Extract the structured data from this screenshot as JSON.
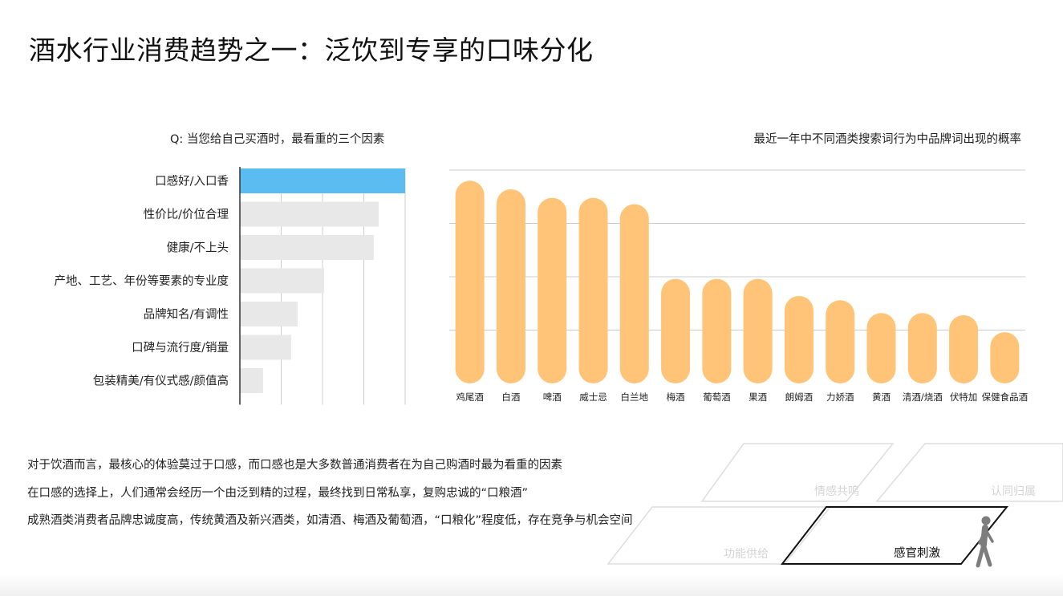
{
  "title": "酒水行业消费趋势之一：泛饮到专享的口味分化",
  "notes": [
    "对于饮酒而言，最核心的体验莫过于口感，而口感也是大多数普通消费者在为自己购酒时最为看重的因素",
    "在口感的选择上，人们通常会经历一个由泛到精的过程，最终找到日常私享，复购忠诚的“口粮酒”",
    "成熟酒类消费者品牌忠诚度高，传统黄酒及新兴酒类，如清酒、梅酒及葡萄酒，“口粮化”程度低，存在竞争与机会空间"
  ],
  "pyramid": {
    "levels": [
      "情感共鸣",
      "认同归属",
      "功能供给",
      "感官刺激"
    ],
    "highlight": "感官刺激",
    "figure_icon": "walking-person-icon"
  },
  "colors": {
    "highlight_bar": "#5bbcf2",
    "muted_bar": "#e8e8e8",
    "column": "#ffc477",
    "grid": "#cccccc"
  },
  "chart_data": [
    {
      "type": "bar",
      "orientation": "horizontal",
      "title": "Q: 当您给自己买酒时，最看重的三个因素",
      "categories": [
        "口感好/入口香",
        "性价比/价位合理",
        "健康/不上头",
        "产地、工艺、年份等要素的专业度",
        "品牌知名/有调性",
        "口碑与流行度/销量",
        "包装精美/有仪式感/颜值高"
      ],
      "values": [
        100,
        84,
        81,
        51,
        35,
        31,
        14
      ],
      "highlight_index": 0,
      "xlim": [
        0,
        100
      ],
      "grid": true
    },
    {
      "type": "bar",
      "orientation": "vertical",
      "title": "最近一年中不同酒类搜索词行为中品牌词出现的概率",
      "categories": [
        "鸡尾酒",
        "白酒",
        "啤酒",
        "威士忌",
        "白兰地",
        "梅酒",
        "葡萄酒",
        "果酒",
        "朗姆酒",
        "力娇酒",
        "黄酒",
        "清酒/烧酒",
        "伏特加",
        "保健食品酒"
      ],
      "values": [
        95,
        91,
        87,
        87,
        84,
        49,
        49,
        49,
        41,
        39,
        33,
        33,
        32,
        24
      ],
      "ylim": [
        0,
        100
      ],
      "grid": true
    }
  ]
}
